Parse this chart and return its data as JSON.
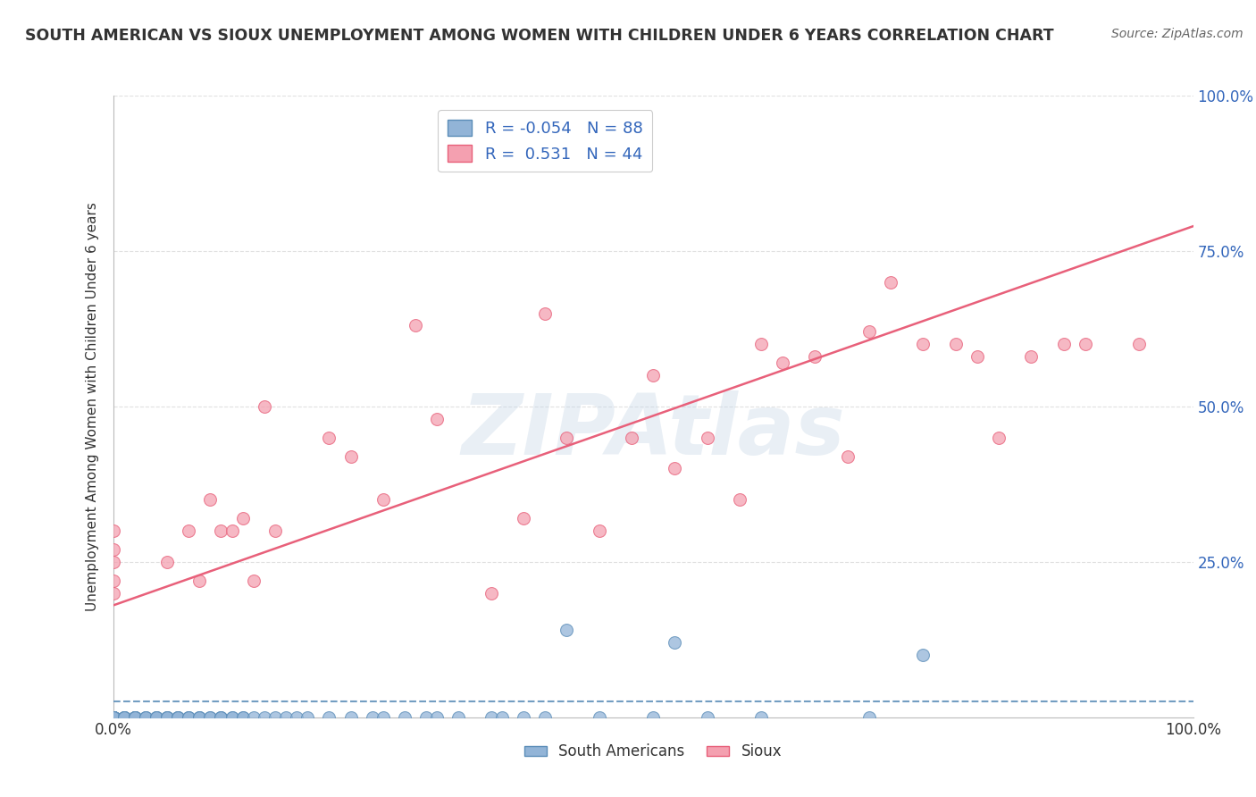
{
  "title": "SOUTH AMERICAN VS SIOUX UNEMPLOYMENT AMONG WOMEN WITH CHILDREN UNDER 6 YEARS CORRELATION CHART",
  "source": "Source: ZipAtlas.com",
  "ylabel": "Unemployment Among Women with Children Under 6 years",
  "legend_label1": "South Americans",
  "legend_label2": "Sioux",
  "R1": -0.054,
  "N1": 88,
  "R2": 0.531,
  "N2": 44,
  "color_blue": "#92B4D7",
  "color_pink": "#F4A0B0",
  "color_line_blue": "#5B8DB8",
  "color_line_pink": "#E8607A",
  "watermark_text": "ZIPAtlas",
  "watermark_color": "#C8D8E8",
  "background_color": "#FFFFFF",
  "grid_color": "#DDDDDD",
  "title_color": "#333333",
  "source_color": "#666666",
  "axis_label_color": "#3366BB",
  "legend_text_color": "#3366BB",
  "sa_x": [
    0.0,
    0.0,
    0.0,
    0.0,
    0.0,
    0.0,
    0.0,
    0.0,
    0.0,
    0.0,
    0.0,
    0.0,
    0.0,
    0.0,
    0.0,
    0.0,
    0.0,
    0.0,
    0.0,
    0.0,
    0.01,
    0.01,
    0.01,
    0.01,
    0.01,
    0.02,
    0.02,
    0.02,
    0.02,
    0.02,
    0.02,
    0.02,
    0.03,
    0.03,
    0.03,
    0.04,
    0.04,
    0.04,
    0.04,
    0.05,
    0.05,
    0.05,
    0.05,
    0.06,
    0.06,
    0.06,
    0.06,
    0.07,
    0.07,
    0.07,
    0.08,
    0.08,
    0.08,
    0.09,
    0.09,
    0.1,
    0.1,
    0.1,
    0.11,
    0.11,
    0.12,
    0.12,
    0.13,
    0.14,
    0.15,
    0.16,
    0.17,
    0.18,
    0.2,
    0.22,
    0.24,
    0.25,
    0.27,
    0.29,
    0.3,
    0.32,
    0.35,
    0.36,
    0.38,
    0.4,
    0.42,
    0.45,
    0.5,
    0.52,
    0.55,
    0.6,
    0.7,
    0.75
  ],
  "sa_y": [
    0.0,
    0.0,
    0.0,
    0.0,
    0.0,
    0.0,
    0.0,
    0.0,
    0.0,
    0.0,
    0.0,
    0.0,
    0.0,
    0.0,
    0.0,
    0.0,
    0.0,
    0.0,
    0.0,
    0.0,
    0.0,
    0.0,
    0.0,
    0.0,
    0.0,
    0.0,
    0.0,
    0.0,
    0.0,
    0.0,
    0.0,
    0.0,
    0.0,
    0.0,
    0.0,
    0.0,
    0.0,
    0.0,
    0.0,
    0.0,
    0.0,
    0.0,
    0.0,
    0.0,
    0.0,
    0.0,
    0.0,
    0.0,
    0.0,
    0.0,
    0.0,
    0.0,
    0.0,
    0.0,
    0.0,
    0.0,
    0.0,
    0.0,
    0.0,
    0.0,
    0.0,
    0.0,
    0.0,
    0.0,
    0.0,
    0.0,
    0.0,
    0.0,
    0.0,
    0.0,
    0.0,
    0.0,
    0.0,
    0.0,
    0.0,
    0.0,
    0.0,
    0.0,
    0.0,
    0.0,
    0.14,
    0.0,
    0.0,
    0.12,
    0.0,
    0.0,
    0.0,
    0.1
  ],
  "si_x": [
    0.0,
    0.0,
    0.0,
    0.0,
    0.0,
    0.05,
    0.07,
    0.08,
    0.09,
    0.1,
    0.11,
    0.12,
    0.13,
    0.14,
    0.15,
    0.2,
    0.22,
    0.25,
    0.28,
    0.3,
    0.35,
    0.38,
    0.4,
    0.42,
    0.45,
    0.48,
    0.5,
    0.52,
    0.55,
    0.58,
    0.6,
    0.62,
    0.65,
    0.68,
    0.7,
    0.72,
    0.75,
    0.78,
    0.8,
    0.82,
    0.85,
    0.88,
    0.9,
    0.95
  ],
  "si_y": [
    0.2,
    0.22,
    0.25,
    0.27,
    0.3,
    0.25,
    0.3,
    0.22,
    0.35,
    0.3,
    0.3,
    0.32,
    0.22,
    0.5,
    0.3,
    0.45,
    0.42,
    0.35,
    0.63,
    0.48,
    0.2,
    0.32,
    0.65,
    0.45,
    0.3,
    0.45,
    0.55,
    0.4,
    0.45,
    0.35,
    0.6,
    0.57,
    0.58,
    0.42,
    0.62,
    0.7,
    0.6,
    0.6,
    0.58,
    0.45,
    0.58,
    0.6,
    0.6,
    0.6
  ],
  "si_trendline_start_y": 0.18,
  "si_trendline_end_y": 0.79,
  "sa_trendline_y": 0.025,
  "ytick_positions": [
    0.0,
    0.25,
    0.5,
    0.75,
    1.0
  ],
  "ytick_labels": [
    "",
    "25.0%",
    "50.0%",
    "75.0%",
    "100.0%"
  ],
  "xtick_positions": [
    0.0,
    1.0
  ],
  "xtick_labels": [
    "0.0%",
    "100.0%"
  ]
}
